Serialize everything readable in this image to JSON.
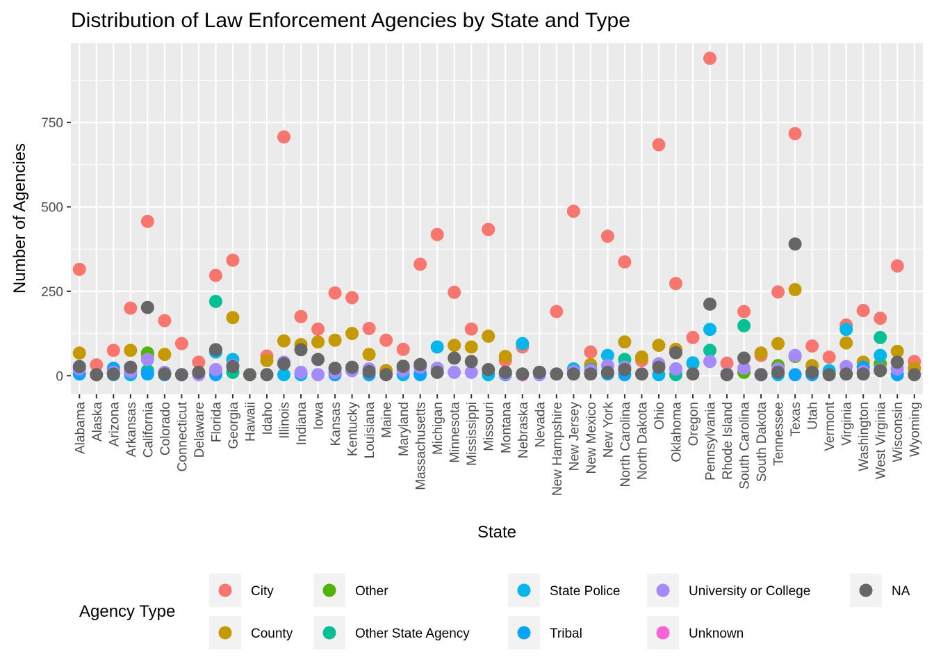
{
  "chart_data": {
    "type": "scatter",
    "title": "Distribution of Law Enforcement Agencies by State and Type",
    "xlabel": "State",
    "ylabel": "Number of Agencies",
    "ylim": [
      -55,
      985
    ],
    "yticks": [
      0,
      250,
      500,
      750
    ],
    "grid": true,
    "legend": {
      "title": "Agency Type",
      "position": "bottom"
    },
    "categories": [
      "Alabama",
      "Alaska",
      "Arizona",
      "Arkansas",
      "California",
      "Colorado",
      "Connecticut",
      "Delaware",
      "Florida",
      "Georgia",
      "Hawaii",
      "Idaho",
      "Illinois",
      "Indiana",
      "Iowa",
      "Kansas",
      "Kentucky",
      "Louisiana",
      "Maine",
      "Maryland",
      "Massachusetts",
      "Michigan",
      "Minnesota",
      "Mississippi",
      "Missouri",
      "Montana",
      "Nebraska",
      "Nevada",
      "New Hampshire",
      "New Jersey",
      "New Mexico",
      "New York",
      "North Carolina",
      "North Dakota",
      "Ohio",
      "Oklahoma",
      "Oregon",
      "Pennsylvania",
      "Rhode Island",
      "South Carolina",
      "South Dakota",
      "Tennessee",
      "Texas",
      "Utah",
      "Vermont",
      "Virginia",
      "Washington",
      "West Virginia",
      "Wisconsin",
      "Wyoming"
    ],
    "series": [
      {
        "name": "City",
        "color": "#F8766D",
        "values": [
          315,
          32,
          75,
          200,
          457,
          163,
          95,
          40,
          297,
          342,
          null,
          58,
          707,
          175,
          138,
          245,
          231,
          140,
          105,
          78,
          330,
          418,
          247,
          138,
          433,
          45,
          85,
          10,
          190,
          487,
          70,
          413,
          337,
          45,
          684,
          273,
          113,
          940,
          37,
          190,
          60,
          248,
          717,
          88,
          55,
          150,
          193,
          170,
          325,
          42
        ]
      },
      {
        "name": "County",
        "color": "#C49A00",
        "values": [
          67,
          null,
          10,
          75,
          58,
          63,
          null,
          8,
          15,
          172,
          3,
          45,
          103,
          92,
          100,
          105,
          125,
          63,
          15,
          22,
          null,
          null,
          90,
          85,
          117,
          57,
          null,
          null,
          null,
          null,
          33,
          null,
          100,
          55,
          90,
          78,
          36,
          null,
          null,
          null,
          67,
          95,
          255,
          30,
          null,
          97,
          40,
          null,
          72,
          22
        ]
      },
      {
        "name": "Other",
        "color": "#53B400",
        "values": [
          null,
          null,
          null,
          null,
          67,
          null,
          null,
          null,
          null,
          null,
          null,
          null,
          null,
          null,
          null,
          null,
          null,
          null,
          null,
          null,
          null,
          null,
          null,
          null,
          null,
          null,
          null,
          null,
          null,
          null,
          null,
          null,
          null,
          null,
          null,
          null,
          null,
          null,
          null,
          10,
          null,
          30,
          57,
          null,
          null,
          5,
          null,
          35,
          null,
          null
        ]
      },
      {
        "name": "Other State Agency",
        "color": "#00C094",
        "values": [
          null,
          null,
          null,
          null,
          15,
          null,
          null,
          null,
          220,
          10,
          null,
          null,
          null,
          null,
          null,
          null,
          null,
          null,
          null,
          null,
          null,
          null,
          null,
          null,
          null,
          null,
          null,
          null,
          null,
          null,
          null,
          null,
          48,
          null,
          null,
          3,
          null,
          75,
          null,
          148,
          null,
          null,
          null,
          null,
          12,
          null,
          null,
          113,
          null,
          null
        ]
      },
      {
        "name": "State Police",
        "color": "#00B6EB",
        "values": [
          null,
          null,
          3,
          3,
          null,
          null,
          null,
          null,
          70,
          48,
          null,
          3,
          3,
          3,
          null,
          null,
          null,
          null,
          null,
          3,
          3,
          85,
          null,
          null,
          3,
          null,
          95,
          null,
          5,
          20,
          null,
          60,
          null,
          null,
          3,
          null,
          38,
          137,
          null,
          null,
          null,
          3,
          null,
          null,
          15,
          137,
          null,
          60,
          null,
          null
        ]
      },
      {
        "name": "Tribal",
        "color": "#06A4FF",
        "values": [
          5,
          null,
          22,
          null,
          5,
          3,
          null,
          null,
          3,
          null,
          null,
          null,
          null,
          null,
          null,
          3,
          null,
          3,
          null,
          null,
          5,
          null,
          null,
          null,
          null,
          3,
          null,
          10,
          null,
          null,
          18,
          5,
          3,
          null,
          null,
          20,
          null,
          null,
          null,
          null,
          null,
          null,
          3,
          3,
          null,
          null,
          25,
          null,
          3,
          null
        ]
      },
      {
        "name": "University or College",
        "color": "#A58AFF",
        "values": [
          20,
          3,
          10,
          12,
          48,
          10,
          3,
          3,
          18,
          30,
          null,
          null,
          40,
          10,
          3,
          10,
          15,
          20,
          null,
          15,
          25,
          22,
          10,
          10,
          null,
          5,
          3,
          3,
          null,
          12,
          15,
          30,
          25,
          5,
          35,
          20,
          null,
          42,
          5,
          22,
          3,
          20,
          60,
          10,
          3,
          27,
          12,
          18,
          20,
          null
        ]
      },
      {
        "name": "Unknown",
        "color": "#FB61D7",
        "values": [
          null,
          null,
          null,
          null,
          null,
          null,
          null,
          null,
          null,
          null,
          null,
          null,
          null,
          null,
          null,
          null,
          null,
          null,
          null,
          null,
          null,
          null,
          null,
          null,
          null,
          null,
          3,
          null,
          null,
          null,
          null,
          null,
          null,
          null,
          null,
          null,
          null,
          null,
          null,
          null,
          null,
          null,
          null,
          null,
          null,
          null,
          null,
          null,
          null,
          null
        ]
      },
      {
        "name": "NA",
        "color": "#666666",
        "values": [
          27,
          3,
          5,
          25,
          202,
          5,
          3,
          10,
          77,
          27,
          3,
          3,
          35,
          77,
          48,
          22,
          25,
          12,
          3,
          28,
          33,
          10,
          52,
          42,
          18,
          10,
          5,
          10,
          5,
          5,
          5,
          10,
          18,
          5,
          25,
          68,
          5,
          212,
          3,
          52,
          3,
          10,
          390,
          10,
          3,
          5,
          5,
          15,
          40,
          3
        ]
      }
    ]
  }
}
